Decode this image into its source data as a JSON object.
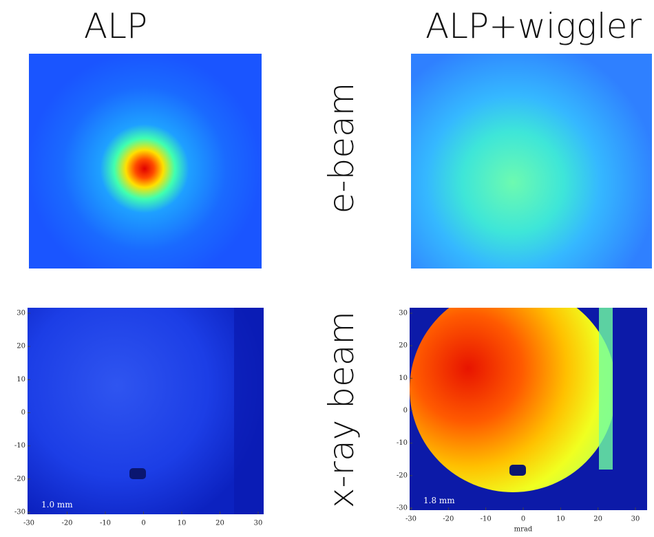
{
  "columns": [
    "ALP",
    "ALP+wiggler"
  ],
  "rows": [
    "e-beam",
    "x-ray beam"
  ],
  "xray_panels": [
    {
      "scale_label": "1.0 mm",
      "xticks": [
        -30,
        -20,
        -10,
        0,
        10,
        20,
        30
      ],
      "yticks": [
        30,
        20,
        10,
        0,
        -10,
        -20,
        -30
      ]
    },
    {
      "scale_label": "1.8 mm",
      "xticks": [
        -30,
        -20,
        -10,
        0,
        10,
        20,
        30
      ],
      "yticks": [
        30,
        20,
        10,
        0,
        -10,
        -20,
        -30
      ],
      "xlabel": "mrad"
    }
  ]
}
